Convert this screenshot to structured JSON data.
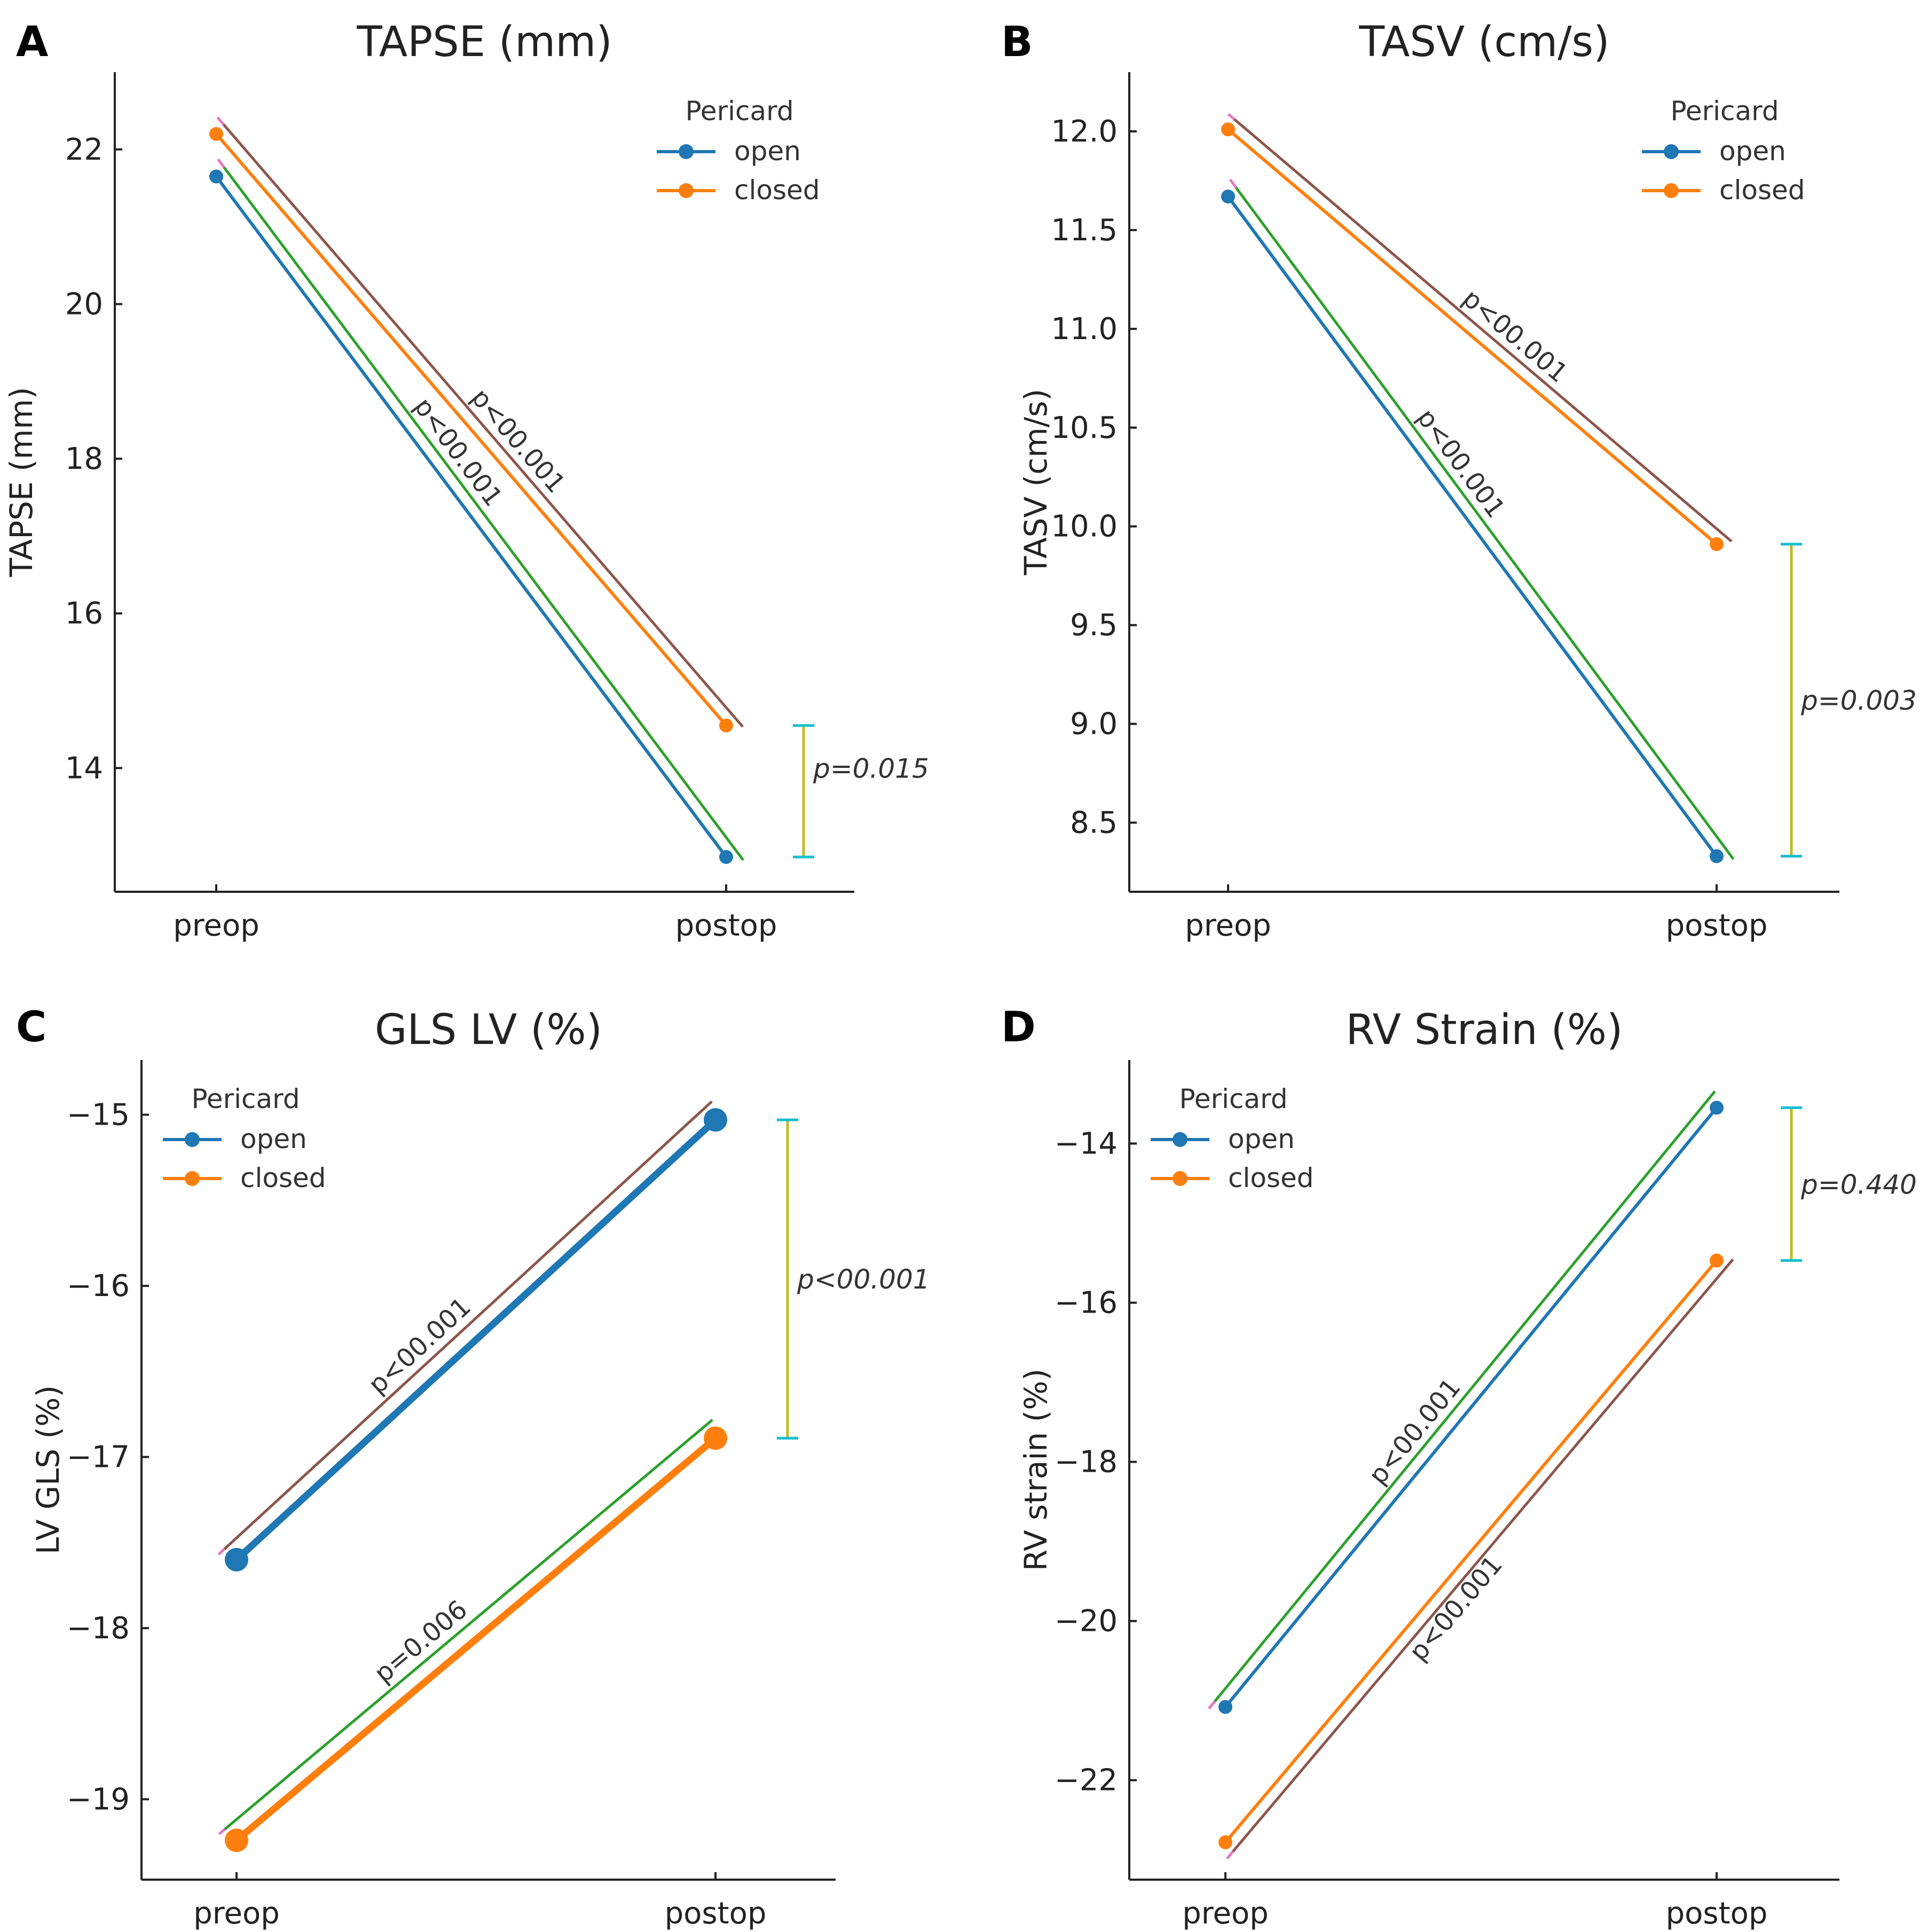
{
  "colors": {
    "open": "#1f77b4",
    "closed": "#ff7f0e",
    "green": "#2ca02c",
    "brown": "#8c564b",
    "pink": "#e377c2",
    "olive": "#bcbd22",
    "cyan": "#17becf",
    "axis": "#222222"
  },
  "legend": {
    "title": "Pericard",
    "open": "open",
    "closed": "closed"
  },
  "chart_data": [
    {
      "letter": "A",
      "type": "line",
      "title": "TAPSE (mm)",
      "xlabel": "",
      "ylabel": "TAPSE (mm)",
      "categories": [
        "preop",
        "postop"
      ],
      "ylim": [
        12.4,
        23.0
      ],
      "yticks": [
        14,
        16,
        18,
        20,
        22
      ],
      "ytick_labels": [
        "14",
        "16",
        "18",
        "20",
        "22"
      ],
      "thick": false,
      "legend_position": "top-right",
      "series": [
        {
          "name": "open",
          "values": [
            21.65,
            12.85
          ]
        },
        {
          "name": "closed",
          "values": [
            22.2,
            14.55
          ]
        }
      ],
      "annotations": {
        "open": {
          "text": "p<00.001",
          "side": "above",
          "label_pos": "left"
        },
        "closed": {
          "text": "p<00.001",
          "side": "above",
          "label_pos": "right"
        },
        "between_groups": {
          "text": "p=0.015",
          "range": [
            12.85,
            14.55
          ],
          "text_value": 14.0
        }
      }
    },
    {
      "letter": "B",
      "type": "line",
      "title": "TASV (cm/s)",
      "xlabel": "",
      "ylabel": "TASV (cm/s)",
      "categories": [
        "preop",
        "postop"
      ],
      "ylim": [
        8.15,
        12.3
      ],
      "yticks": [
        8.5,
        9.0,
        9.5,
        10.0,
        10.5,
        11.0,
        11.5,
        12.0
      ],
      "ytick_labels": [
        "8.5",
        "9.0",
        "9.5",
        "10.0",
        "10.5",
        "11.0",
        "11.5",
        "12.0"
      ],
      "thick": false,
      "legend_position": "top-right",
      "series": [
        {
          "name": "open",
          "values": [
            11.67,
            8.33
          ]
        },
        {
          "name": "closed",
          "values": [
            12.01,
            9.91
          ]
        }
      ],
      "annotations": {
        "open": {
          "text": "p<00.001",
          "side": "above",
          "label_pos": "left"
        },
        "closed": {
          "text": "p<00.001",
          "side": "above",
          "label_pos": "right"
        },
        "between_groups": {
          "text": "p=0.003",
          "range": [
            8.33,
            9.91
          ],
          "text_value": 9.12
        }
      }
    },
    {
      "letter": "C",
      "type": "line",
      "title": "GLS LV (%)",
      "xlabel": "",
      "ylabel": "LV GLS (%)",
      "categories": [
        "preop",
        "postop"
      ],
      "ylim": [
        -19.47,
        -14.68
      ],
      "yticks": [
        -19,
        -18,
        -17,
        -16,
        -15
      ],
      "ytick_labels": [
        "−19",
        "−18",
        "−17",
        "−16",
        "−15"
      ],
      "thick": true,
      "legend_position": "top-left",
      "series": [
        {
          "name": "open",
          "values": [
            -17.6,
            -15.03
          ]
        },
        {
          "name": "closed",
          "values": [
            -19.24,
            -16.89
          ]
        }
      ],
      "annotations": {
        "open": {
          "text": "p<00.001",
          "side": "above",
          "label_pos": "left"
        },
        "closed": {
          "text": "p=0.006",
          "side": "above",
          "label_pos": "left"
        },
        "between_groups": {
          "text": "p<00.001",
          "range": [
            -16.89,
            -15.03
          ],
          "text_value": -15.96
        }
      }
    },
    {
      "letter": "D",
      "type": "line",
      "title": "RV Strain (%)",
      "xlabel": "",
      "ylabel": "RV strain (%)",
      "categories": [
        "preop",
        "postop"
      ],
      "ylim": [
        -23.25,
        -12.95
      ],
      "yticks": [
        -22,
        -20,
        -18,
        -16,
        -14
      ],
      "ytick_labels": [
        "−22",
        "−20",
        "−18",
        "−16",
        "−14"
      ],
      "thick": false,
      "legend_position": "top-left",
      "series": [
        {
          "name": "open",
          "values": [
            -21.08,
            -13.55
          ]
        },
        {
          "name": "closed",
          "values": [
            -22.78,
            -15.47
          ]
        }
      ],
      "annotations": {
        "open": {
          "text": "p<00.001",
          "side": "above",
          "label_pos": "left"
        },
        "closed": {
          "text": "p<00.001",
          "side": "below",
          "label_pos": "left"
        },
        "between_groups": {
          "text": "p=0.440",
          "range": [
            -15.47,
            -13.55
          ],
          "text_value": -14.51
        }
      }
    }
  ]
}
